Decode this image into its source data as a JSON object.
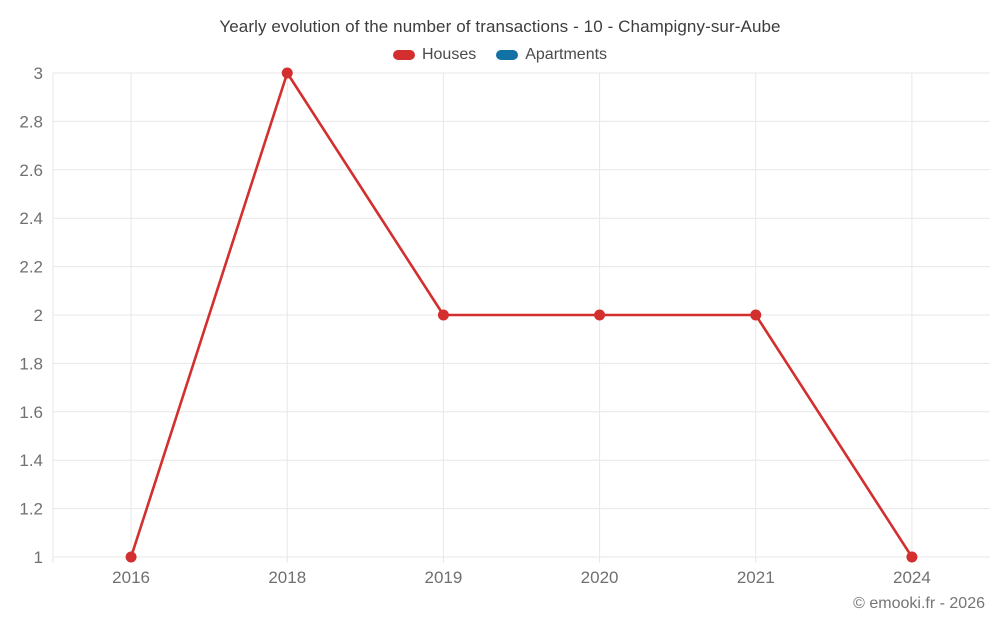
{
  "title": "Yearly evolution of the number of transactions - 10 - Champigny-sur-Aube",
  "legend": {
    "items": [
      {
        "label": "Houses",
        "color": "#d32f2f"
      },
      {
        "label": "Apartments",
        "color": "#1272a5"
      }
    ]
  },
  "footer": {
    "copyright": "© emooki.fr - 2026"
  },
  "colors": {
    "grid": "#e7e7e7",
    "tick_text": "#707070",
    "title_text": "#3d3d3d"
  },
  "chart_data": {
    "type": "line",
    "title": "Yearly evolution of the number of transactions - 10 - Champigny-sur-Aube",
    "categories": [
      "2016",
      "2018",
      "2019",
      "2020",
      "2021",
      "2024"
    ],
    "series": [
      {
        "name": "Houses",
        "color": "#d32f2f",
        "values": [
          1,
          3,
          2,
          2,
          2,
          1
        ]
      },
      {
        "name": "Apartments",
        "color": "#1272a5",
        "values": []
      }
    ],
    "xlabel": "",
    "ylabel": "",
    "ylim": [
      1,
      3
    ],
    "ytick_step": 0.2,
    "ytick_labels": [
      "1",
      "1.2",
      "1.4",
      "1.6",
      "1.8",
      "2",
      "2.2",
      "2.4",
      "2.6",
      "2.8",
      "3"
    ],
    "grid": true,
    "legend_position": "top",
    "marker": "circle",
    "marker_radius": 5.5,
    "line_width": 2.6
  }
}
